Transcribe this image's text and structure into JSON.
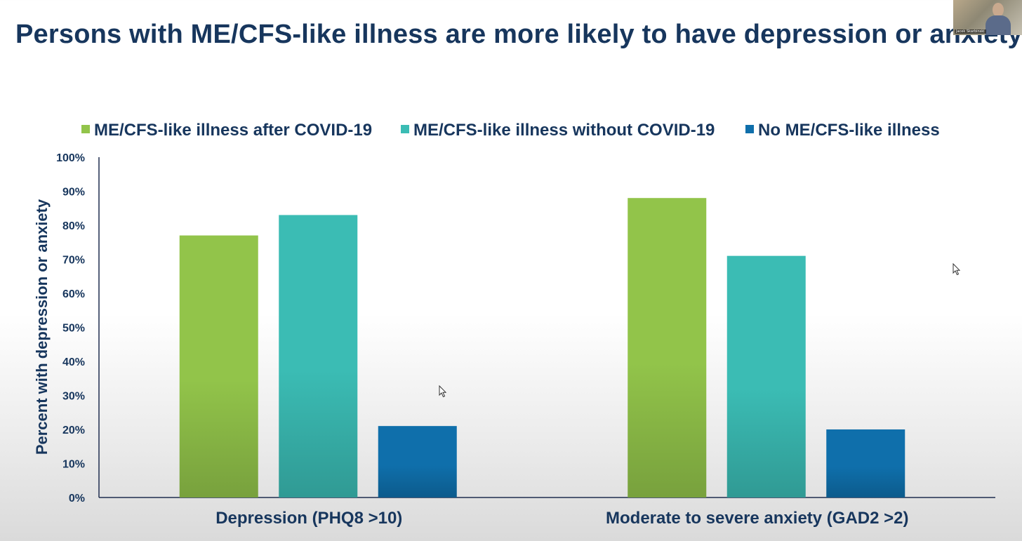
{
  "slide": {
    "title": "Persons with ME/CFS-like illness are more likely to have depression or anxiety",
    "presenter_name": "Jacek Skarbinski"
  },
  "chart_data": {
    "type": "bar",
    "title": "",
    "ylabel": "Percent with depression or anxiety",
    "xlabel": "",
    "ylim": [
      0,
      100
    ],
    "yticks": [
      "0%",
      "10%",
      "20%",
      "30%",
      "40%",
      "50%",
      "60%",
      "70%",
      "80%",
      "90%",
      "100%"
    ],
    "categories": [
      "Depression (PHQ8 >10)",
      "Moderate to severe anxiety (GAD2 >2)"
    ],
    "legend_position": "top",
    "grid": false,
    "series": [
      {
        "name": "ME/CFS-like illness after COVID-19",
        "values": [
          77,
          88
        ],
        "color": "#92c44a"
      },
      {
        "name": "ME/CFS-like illness without COVID-19",
        "values": [
          83,
          71
        ],
        "color": "#3bbcb4"
      },
      {
        "name": "No ME/CFS-like illness",
        "values": [
          21,
          20
        ],
        "color": "#0f6fab"
      }
    ]
  }
}
